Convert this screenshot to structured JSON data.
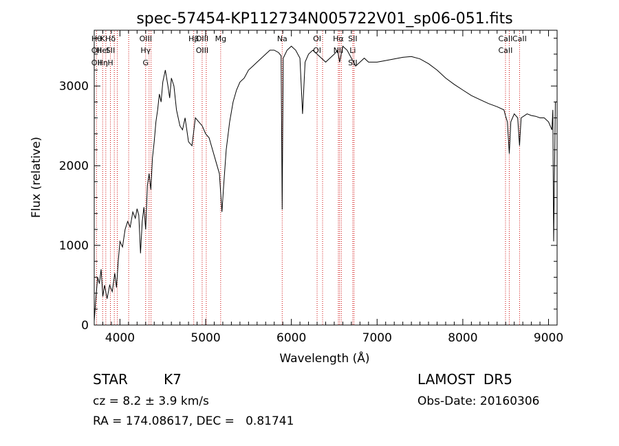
{
  "chart_data": {
    "type": "line",
    "title": "spec-57454-KP112734N005722V01_sp06-051.fits",
    "xlabel": "Wavelength (Å)",
    "ylabel": "Flux (relative)",
    "xlim": [
      3700,
      9100
    ],
    "ylim": [
      0,
      3700
    ],
    "x_ticks": [
      4000,
      5000,
      6000,
      7000,
      8000,
      9000
    ],
    "y_ticks": [
      0,
      1000,
      2000,
      3000
    ],
    "series": [
      {
        "values": [
          [
            3700,
            50
          ],
          [
            3720,
            350
          ],
          [
            3740,
            600
          ],
          [
            3760,
            520
          ],
          [
            3780,
            700
          ],
          [
            3800,
            360
          ],
          [
            3820,
            500
          ],
          [
            3850,
            330
          ],
          [
            3880,
            500
          ],
          [
            3910,
            420
          ],
          [
            3940,
            650
          ],
          [
            3960,
            470
          ],
          [
            3980,
            800
          ],
          [
            4000,
            1050
          ],
          [
            4030,
            980
          ],
          [
            4060,
            1200
          ],
          [
            4090,
            1300
          ],
          [
            4120,
            1230
          ],
          [
            4150,
            1420
          ],
          [
            4180,
            1340
          ],
          [
            4200,
            1460
          ],
          [
            4220,
            1380
          ],
          [
            4240,
            900
          ],
          [
            4260,
            1300
          ],
          [
            4280,
            1480
          ],
          [
            4300,
            1200
          ],
          [
            4320,
            1750
          ],
          [
            4340,
            1900
          ],
          [
            4360,
            1700
          ],
          [
            4380,
            2100
          ],
          [
            4400,
            2300
          ],
          [
            4420,
            2550
          ],
          [
            4440,
            2700
          ],
          [
            4460,
            2900
          ],
          [
            4480,
            2800
          ],
          [
            4500,
            3050
          ],
          [
            4530,
            3200
          ],
          [
            4560,
            3000
          ],
          [
            4580,
            2850
          ],
          [
            4600,
            3100
          ],
          [
            4630,
            3000
          ],
          [
            4660,
            2700
          ],
          [
            4700,
            2500
          ],
          [
            4730,
            2450
          ],
          [
            4760,
            2600
          ],
          [
            4800,
            2300
          ],
          [
            4840,
            2250
          ],
          [
            4880,
            2600
          ],
          [
            4920,
            2550
          ],
          [
            4960,
            2500
          ],
          [
            5000,
            2400
          ],
          [
            5040,
            2350
          ],
          [
            5080,
            2200
          ],
          [
            5120,
            2050
          ],
          [
            5160,
            1900
          ],
          [
            5190,
            1420
          ],
          [
            5210,
            1750
          ],
          [
            5240,
            2200
          ],
          [
            5280,
            2550
          ],
          [
            5320,
            2800
          ],
          [
            5360,
            2950
          ],
          [
            5400,
            3050
          ],
          [
            5450,
            3100
          ],
          [
            5500,
            3200
          ],
          [
            5550,
            3250
          ],
          [
            5600,
            3300
          ],
          [
            5650,
            3350
          ],
          [
            5700,
            3400
          ],
          [
            5750,
            3450
          ],
          [
            5800,
            3450
          ],
          [
            5850,
            3420
          ],
          [
            5880,
            3380
          ],
          [
            5893,
            1450
          ],
          [
            5905,
            3350
          ],
          [
            5950,
            3450
          ],
          [
            6000,
            3500
          ],
          [
            6050,
            3450
          ],
          [
            6100,
            3350
          ],
          [
            6130,
            2650
          ],
          [
            6160,
            3300
          ],
          [
            6200,
            3400
          ],
          [
            6250,
            3450
          ],
          [
            6300,
            3400
          ],
          [
            6350,
            3350
          ],
          [
            6400,
            3300
          ],
          [
            6450,
            3350
          ],
          [
            6500,
            3400
          ],
          [
            6540,
            3450
          ],
          [
            6563,
            3300
          ],
          [
            6600,
            3500
          ],
          [
            6650,
            3450
          ],
          [
            6700,
            3350
          ],
          [
            6750,
            3250
          ],
          [
            6800,
            3300
          ],
          [
            6850,
            3350
          ],
          [
            6900,
            3300
          ],
          [
            7000,
            3300
          ],
          [
            7100,
            3320
          ],
          [
            7200,
            3340
          ],
          [
            7300,
            3360
          ],
          [
            7400,
            3370
          ],
          [
            7500,
            3340
          ],
          [
            7600,
            3280
          ],
          [
            7700,
            3200
          ],
          [
            7800,
            3100
          ],
          [
            7900,
            3020
          ],
          [
            8000,
            2950
          ],
          [
            8100,
            2880
          ],
          [
            8200,
            2830
          ],
          [
            8300,
            2780
          ],
          [
            8400,
            2740
          ],
          [
            8480,
            2700
          ],
          [
            8500,
            2620
          ],
          [
            8520,
            2550
          ],
          [
            8542,
            2150
          ],
          [
            8560,
            2550
          ],
          [
            8600,
            2650
          ],
          [
            8640,
            2600
          ],
          [
            8662,
            2250
          ],
          [
            8680,
            2600
          ],
          [
            8750,
            2650
          ],
          [
            8800,
            2630
          ],
          [
            8850,
            2620
          ],
          [
            8900,
            2600
          ],
          [
            8950,
            2600
          ],
          [
            9000,
            2550
          ],
          [
            9040,
            2450
          ],
          [
            9050,
            2700
          ],
          [
            9060,
            1050
          ],
          [
            9080,
            2800
          ],
          [
            9100,
            2800
          ]
        ]
      }
    ],
    "line_color": "#000000",
    "marker_color": "#cc0000",
    "grid": false,
    "markers": [
      {
        "x": 3727,
        "labels": [
          "Hθ",
          "OII",
          "OII"
        ]
      },
      {
        "x": 3798,
        "labels": [
          "K",
          "HeI",
          "Hη"
        ]
      },
      {
        "x": 3835,
        "labels": [],
        "marker_only": true
      },
      {
        "x": 3889,
        "labels": [
          "Hδ",
          "SII",
          "H"
        ]
      },
      {
        "x": 3934,
        "labels": [],
        "marker_only": true
      },
      {
        "x": 3969,
        "labels": [],
        "marker_only": true
      },
      {
        "x": 4102,
        "labels": [],
        "marker_only": true
      },
      {
        "x": 4300,
        "labels": [
          "OIII",
          "Hγ",
          "G"
        ]
      },
      {
        "x": 4340,
        "labels": [],
        "marker_only": true
      },
      {
        "x": 4363,
        "labels": [],
        "marker_only": true
      },
      {
        "x": 4861,
        "labels": [
          "Hβ"
        ]
      },
      {
        "x": 4959,
        "labels": [
          "OIII",
          "OIII"
        ]
      },
      {
        "x": 5007,
        "labels": [],
        "marker_only": true
      },
      {
        "x": 5175,
        "labels": [
          "Mg"
        ]
      },
      {
        "x": 5893,
        "labels": [
          "Na"
        ]
      },
      {
        "x": 6300,
        "labels": [
          "OI",
          "OI"
        ]
      },
      {
        "x": 6364,
        "labels": [],
        "marker_only": true
      },
      {
        "x": 6548,
        "labels": [
          "Hα",
          "NII"
        ]
      },
      {
        "x": 6563,
        "labels": [],
        "marker_only": true
      },
      {
        "x": 6583,
        "labels": [],
        "marker_only": true
      },
      {
        "x": 6716,
        "labels": [
          "SII",
          "Li",
          "SII"
        ]
      },
      {
        "x": 6731,
        "labels": [],
        "marker_only": true
      },
      {
        "x": 8498,
        "labels": [
          "CaII",
          "CaII"
        ]
      },
      {
        "x": 8542,
        "labels": [],
        "marker_only": true
      },
      {
        "x": 8662,
        "labels": [
          "CaII"
        ]
      }
    ]
  },
  "footer": {
    "object_class": "STAR",
    "subclass": "K7",
    "survey": "LAMOST  DR5",
    "redshift_line": "cz = 8.2 ± 3.9 km/s",
    "obs_date": "Obs-Date: 20160306",
    "coords": "RA = 174.08617, DEC =   0.81741"
  }
}
